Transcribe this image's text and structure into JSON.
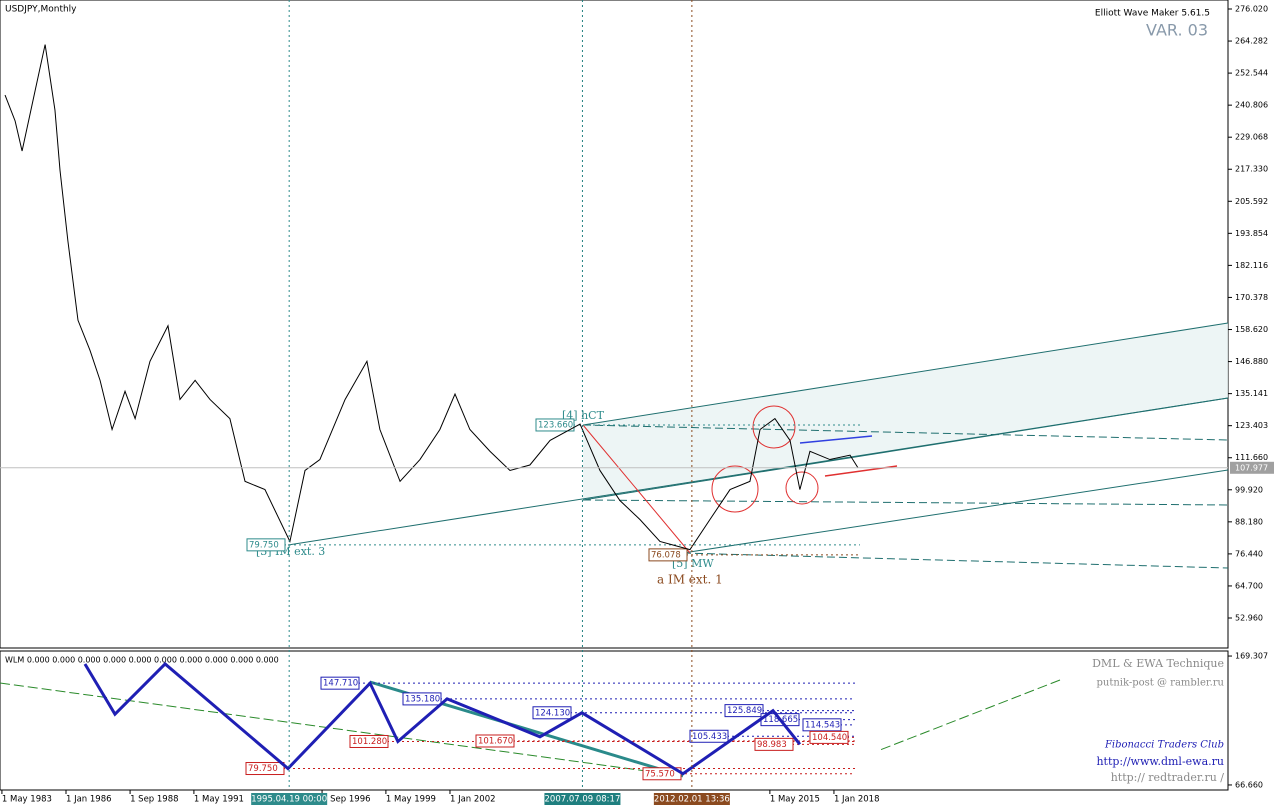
{
  "chart_data": [
    {
      "type": "line",
      "title": "USDJPY,Monthly",
      "color": "#000000",
      "x": [
        1983.46,
        1983.88,
        1984.17,
        1984.71,
        1985.13,
        1985.54,
        1985.75,
        1986.08,
        1986.5,
        1987.0,
        1987.42,
        1987.92,
        1988.46,
        1988.88,
        1989.5,
        1990.25,
        1990.75,
        1991.38,
        1992.0,
        1992.83,
        1993.46,
        1994.29,
        1995.33,
        1995.96,
        1996.58,
        1997.63,
        1998.54,
        1999.08,
        1999.92,
        2000.75,
        2001.58,
        2002.21,
        2002.83,
        2003.67,
        2004.5,
        2005.33,
        2006.17,
        2007.42,
        2008.25,
        2009.08,
        2009.92,
        2010.75,
        2012.0,
        2012.83,
        2013.67,
        2014.5,
        2014.92,
        2015.54,
        2016.17,
        2016.58,
        2017.0,
        2017.83,
        2018.67,
        2019.0
      ],
      "values": [
        244.5,
        235,
        224,
        246,
        263,
        239,
        217,
        191,
        162,
        151,
        140,
        122,
        136,
        126,
        147,
        160,
        133,
        140,
        133,
        126,
        103,
        100,
        81,
        107,
        111,
        133,
        147,
        122,
        103,
        111,
        122,
        135,
        122,
        114,
        107,
        109,
        118,
        124,
        107,
        96,
        89,
        81,
        78,
        89,
        100,
        103,
        122,
        126,
        118,
        100,
        114,
        111,
        112.6,
        108
      ],
      "xlim": [
        1983.25,
        2034.42
      ],
      "xticks": [
        {
          "value": 1983.33,
          "label": "1 May 1983"
        },
        {
          "value": 1986.0,
          "label": "1 Jan 1986"
        },
        {
          "value": 1988.67,
          "label": "1 Sep 1988"
        },
        {
          "value": 1991.33,
          "label": "1 May 1991"
        },
        {
          "value": 1996.67,
          "label": "1 Sep 1996"
        },
        {
          "value": 1999.33,
          "label": "1 May 1999"
        },
        {
          "value": 2002.0,
          "label": "1 Jan 2002"
        },
        {
          "value": 2015.33,
          "label": "1 May 2015"
        },
        {
          "value": 2018.0,
          "label": "1 Jan 2018"
        }
      ],
      "markers": [
        {
          "value": 1995.3,
          "label": "1995.04.19 00:00",
          "color": "#2e8b8b"
        },
        {
          "value": 2007.52,
          "label": "2007.07.09 08:17",
          "color": "#1f7f7f"
        },
        {
          "value": 2012.08,
          "label": "2012.02.01 13:36",
          "color": "#8b4a1f"
        }
      ],
      "ylim": [
        41.97,
        279.32
      ],
      "yticks": [
        {
          "value": 276.02,
          "label": "276.020"
        },
        {
          "value": 264.282,
          "label": "264.282"
        },
        {
          "value": 252.544,
          "label": "252.544"
        },
        {
          "value": 240.806,
          "label": "240.806"
        },
        {
          "value": 229.068,
          "label": "229.068"
        },
        {
          "value": 217.33,
          "label": "217.330"
        },
        205.592,
        193.854,
        182.116,
        170.378,
        {
          "value": 158.62,
          "label": "158.620"
        },
        {
          "value": 146.88,
          "label": "146.880"
        },
        135.141,
        123.403,
        {
          "value": 111.66,
          "label": "111.660"
        },
        {
          "value": 99.92,
          "label": "99.920"
        },
        {
          "value": 88.18,
          "label": "88.180"
        },
        {
          "value": 76.44,
          "label": "76.440"
        },
        {
          "value": 64.7,
          "label": "64.700"
        },
        {
          "value": 52.96,
          "label": "52.960"
        }
      ],
      "current": {
        "value": 107.977,
        "label": "107.977"
      },
      "levels": [
        {
          "value": 123.66,
          "label": "123.660",
          "color": "#2e8b8b"
        },
        {
          "value": 79.75,
          "label": "79.750",
          "color": "#2e8b8b"
        },
        {
          "value": 76.078,
          "label": "76.078",
          "color": "#8b4a1f"
        }
      ],
      "annotations": [
        "Elliott Wave Maker 5.61.5",
        "VAR. 03",
        "[4] hCT",
        "[3] IM ext. 3",
        "[5] MW",
        "a IM ext. 1"
      ]
    },
    {
      "type": "line",
      "title": "WLM 0.000 0.000 0.000 0.000 0.000 0.000 0.000 0.000 0.000 0.000",
      "color": "#1f1fb4",
      "x": [
        1986.79,
        1988.04,
        1990.13,
        1995.25,
        1998.67,
        1999.83,
        2001.88,
        2005.75,
        2007.5,
        2011.71,
        2015.46,
        2016.58
      ],
      "values": [
        163,
        123,
        163,
        79.75,
        147.71,
        101.28,
        135.18,
        105,
        124.13,
        75.57,
        125.849,
        98.983
      ],
      "ylim": [
        62.65,
        173.32
      ],
      "yticks": [
        {
          "value": 169.307,
          "label": "169.307"
        },
        {
          "value": 66.66,
          "label": "66.660"
        }
      ],
      "levels": [
        {
          "value": 147.71,
          "label": "147.710",
          "color": "#1f1fb4"
        },
        {
          "value": 135.18,
          "label": "135.180",
          "color": "#1f1fb4"
        },
        {
          "value": 124.13,
          "label": "124.130",
          "color": "#1f1fb4"
        },
        {
          "value": 101.28,
          "label": "101.280",
          "color": "#c81e1e"
        },
        {
          "value": 101.67,
          "label": "101.670",
          "color": "#c81e1e"
        },
        {
          "value": 79.75,
          "label": "79.750",
          "color": "#c81e1e"
        },
        {
          "value": 75.57,
          "label": "75.570",
          "color": "#c81e1e"
        },
        {
          "value": 125.849,
          "label": "125.849",
          "color": "#1f1fb4"
        },
        {
          "value": 118.665,
          "label": "118.665",
          "color": "#1f1fb4"
        },
        {
          "value": 114.543,
          "label": "114.543",
          "color": "#1f1fb4"
        },
        {
          "value": 105.433,
          "label": "105.433",
          "color": "#1f1fb4"
        },
        {
          "value": 98.983,
          "label": "98.983",
          "color": "#c81e1e"
        },
        {
          "value": 104.54,
          "label": "104.540",
          "color": "#c81e1e"
        }
      ],
      "annotations": [
        "DML & EWA Technique",
        "putnik-post @ rambler.ru",
        "Fibonacci Traders Club",
        "http://www.dml-ewa.ru",
        "http:// redtrader.ru /"
      ]
    }
  ]
}
